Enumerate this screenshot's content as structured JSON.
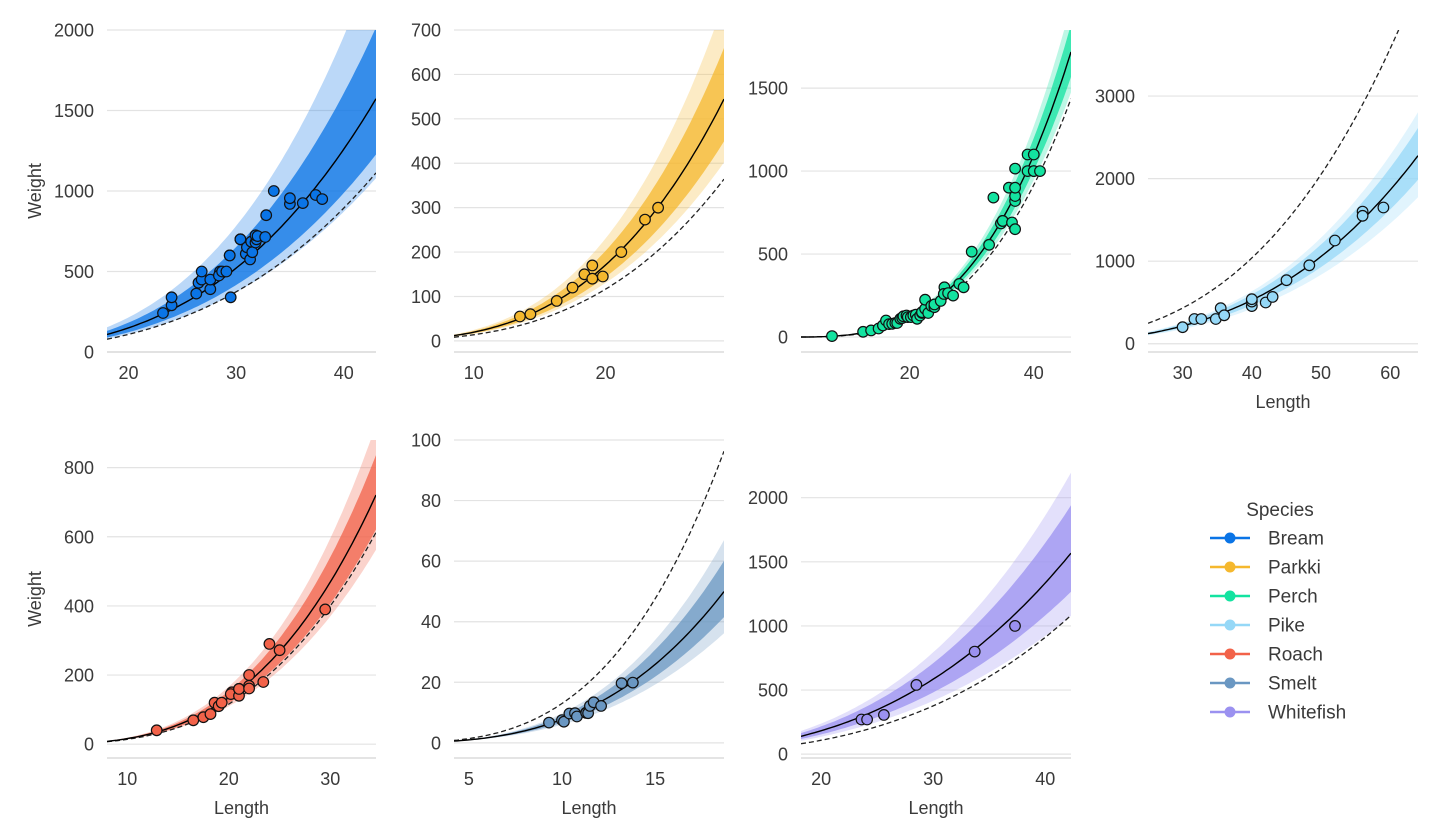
{
  "chart_data": [
    {
      "type": "scatter",
      "species": "Bream",
      "color": "#0a74e6",
      "xlabel": "",
      "ylabel": "Weight",
      "xlim": [
        18,
        43
      ],
      "ylim": [
        0,
        2000
      ],
      "xticks": [
        20,
        30,
        40
      ],
      "yticks": [
        0,
        500,
        1000,
        1500,
        2000
      ],
      "xtick_labels": [
        "20",
        "30",
        "40"
      ],
      "ytick_labels": [
        "0",
        "500",
        "1000",
        "1500",
        "2000"
      ],
      "fit_line": {
        "a": 0.0152,
        "b": 3.07
      },
      "reference_curve": {
        "a": 0.0125,
        "b": 3.03
      },
      "band": {
        "upper_a": 0.0152,
        "upper_b": 3.19,
        "lower_a": 0.0152,
        "lower_b": 2.97
      },
      "points": [
        [
          23.2,
          242
        ],
        [
          24.0,
          290
        ],
        [
          24.0,
          340
        ],
        [
          26.3,
          363
        ],
        [
          26.5,
          430
        ],
        [
          26.8,
          450
        ],
        [
          26.8,
          500
        ],
        [
          27.6,
          390
        ],
        [
          27.6,
          450
        ],
        [
          28.5,
          500
        ],
        [
          28.4,
          475
        ],
        [
          28.7,
          500
        ],
        [
          29.1,
          500
        ],
        [
          29.5,
          340
        ],
        [
          29.4,
          600
        ],
        [
          29.4,
          600
        ],
        [
          30.4,
          700
        ],
        [
          30.4,
          700
        ],
        [
          30.9,
          610
        ],
        [
          31.0,
          650
        ],
        [
          31.3,
          575
        ],
        [
          31.4,
          685
        ],
        [
          31.5,
          620
        ],
        [
          31.8,
          680
        ],
        [
          31.9,
          700
        ],
        [
          31.8,
          725
        ],
        [
          32.0,
          720
        ],
        [
          32.7,
          714
        ],
        [
          32.8,
          850
        ],
        [
          33.5,
          1000
        ],
        [
          35.0,
          920
        ],
        [
          35.0,
          955
        ],
        [
          36.2,
          925
        ],
        [
          37.4,
          975
        ],
        [
          38.0,
          950
        ]
      ]
    },
    {
      "type": "scatter",
      "species": "Parkki",
      "color": "#f5b82e",
      "xlabel": "",
      "ylabel": "",
      "xlim": [
        8.5,
        29
      ],
      "ylim": [
        -25,
        700
      ],
      "xticks": [
        10,
        20
      ],
      "yticks": [
        0,
        100,
        200,
        300,
        400,
        500,
        600,
        700
      ],
      "xtick_labels": [
        "10",
        "20"
      ],
      "ytick_labels": [
        "0",
        "100",
        "200",
        "300",
        "400",
        "500",
        "600",
        "700"
      ],
      "fit_line": {
        "a": 0.0149,
        "b": 3.12
      },
      "reference_curve": {
        "a": 0.0118,
        "b": 3.07
      },
      "band": {
        "upper_a": 0.0149,
        "upper_b": 3.22,
        "lower_a": 0.0149,
        "lower_b": 3.03
      },
      "points": [
        [
          13.5,
          55
        ],
        [
          14.3,
          60
        ],
        [
          16.3,
          90
        ],
        [
          17.5,
          120
        ],
        [
          18.4,
          150
        ],
        [
          19.0,
          140
        ],
        [
          19.0,
          170
        ],
        [
          19.8,
          145
        ],
        [
          21.2,
          200
        ],
        [
          23.0,
          273
        ],
        [
          24.0,
          300
        ]
      ]
    },
    {
      "type": "scatter",
      "species": "Perch",
      "color": "#13e3a0",
      "xlabel": "",
      "ylabel": "",
      "xlim": [
        2.5,
        46
      ],
      "ylim": [
        -90,
        1850
      ],
      "xticks": [
        20,
        40
      ],
      "yticks": [
        0,
        500,
        1000,
        1500
      ],
      "xtick_labels": [
        "20",
        "40"
      ],
      "ytick_labels": [
        "0",
        "500",
        "1000",
        "1500"
      ],
      "fit_line": {
        "a": 0.0079,
        "b": 3.21
      },
      "reference_curve": {
        "a": 0.0066,
        "b": 3.21
      },
      "band": {
        "upper_a": 0.0079,
        "upper_b": 3.25,
        "lower_a": 0.0079,
        "lower_b": 3.17
      },
      "points": [
        [
          7.5,
          5.9
        ],
        [
          12.5,
          32
        ],
        [
          13.8,
          40
        ],
        [
          15.0,
          51.5
        ],
        [
          15.7,
          70
        ],
        [
          16.2,
          100
        ],
        [
          16.7,
          78
        ],
        [
          17.2,
          80
        ],
        [
          17.7,
          85
        ],
        [
          18.0,
          85
        ],
        [
          18.5,
          110
        ],
        [
          18.8,
          115
        ],
        [
          19.0,
          125
        ],
        [
          19.5,
          130
        ],
        [
          19.7,
          120
        ],
        [
          20.2,
          120
        ],
        [
          20.6,
          130
        ],
        [
          21.0,
          135
        ],
        [
          21.2,
          110
        ],
        [
          21.7,
          130
        ],
        [
          22.0,
          150
        ],
        [
          22.0,
          145
        ],
        [
          22.0,
          150
        ],
        [
          22.5,
          170
        ],
        [
          22.5,
          225
        ],
        [
          23.0,
          145
        ],
        [
          23.5,
          188
        ],
        [
          24.0,
          180
        ],
        [
          24.0,
          197
        ],
        [
          25.0,
          218
        ],
        [
          25.6,
          300
        ],
        [
          25.5,
          260
        ],
        [
          26.2,
          265
        ],
        [
          27.0,
          250
        ],
        [
          28.0,
          320
        ],
        [
          28.7,
          300
        ],
        [
          30.0,
          514
        ],
        [
          32.8,
          556
        ],
        [
          33.5,
          840
        ],
        [
          34.7,
          685
        ],
        [
          35.0,
          700
        ],
        [
          35.0,
          700
        ],
        [
          36.5,
          690
        ],
        [
          36.0,
          900
        ],
        [
          37.0,
          650
        ],
        [
          37.0,
          820
        ],
        [
          37.0,
          850
        ],
        [
          37.0,
          900
        ],
        [
          37.0,
          1015
        ],
        [
          39.0,
          1100
        ],
        [
          39.0,
          1000
        ],
        [
          40.0,
          1100
        ],
        [
          40.0,
          1000
        ],
        [
          40.0,
          1000
        ],
        [
          41.0,
          1000
        ]
      ]
    },
    {
      "type": "scatter",
      "species": "Pike",
      "color": "#95d8f7",
      "xlabel": "Length",
      "ylabel": "",
      "xlim": [
        25,
        64
      ],
      "ylim": [
        -100,
        3800
      ],
      "xticks": [
        30,
        40,
        50,
        60
      ],
      "yticks": [
        0,
        1000,
        2000,
        3000
      ],
      "xtick_labels": [
        "30",
        "40",
        "50",
        "60"
      ],
      "ytick_labels": [
        "0",
        "1000",
        "2000",
        "3000"
      ],
      "fit_line": {
        "a": 0.0055,
        "b": 3.11
      },
      "reference_curve": {
        "a": 0.0135,
        "b": 3.05
      },
      "band": {
        "upper_a": 0.0055,
        "upper_b": 3.16,
        "lower_a": 0.0055,
        "lower_b": 3.05
      },
      "points": [
        [
          30.0,
          200
        ],
        [
          31.7,
          300
        ],
        [
          32.7,
          300
        ],
        [
          34.8,
          300
        ],
        [
          35.5,
          430
        ],
        [
          36.0,
          345
        ],
        [
          40.0,
          456
        ],
        [
          40.0,
          510
        ],
        [
          40.0,
          540
        ],
        [
          42.0,
          500
        ],
        [
          43.0,
          567
        ],
        [
          45.0,
          770
        ],
        [
          48.3,
          950
        ],
        [
          52.0,
          1250
        ],
        [
          56.0,
          1600
        ],
        [
          56.0,
          1550
        ],
        [
          59.0,
          1650
        ]
      ]
    },
    {
      "type": "scatter",
      "species": "Roach",
      "color": "#f26249",
      "xlabel": "Length",
      "ylabel": "Weight",
      "xlim": [
        8,
        34.5
      ],
      "ylim": [
        -40,
        880
      ],
      "xticks": [
        10,
        20,
        30
      ],
      "yticks": [
        0,
        200,
        400,
        600,
        800
      ],
      "xtick_labels": [
        "10",
        "20",
        "30"
      ],
      "ytick_labels": [
        "0",
        "200",
        "400",
        "600",
        "800"
      ],
      "fit_line": {
        "a": 0.0137,
        "b": 3.07
      },
      "reference_curve": {
        "a": 0.0125,
        "b": 3.05
      },
      "band": {
        "upper_a": 0.0137,
        "upper_b": 3.14,
        "lower_a": 0.0137,
        "lower_b": 3.0
      },
      "points": [
        [
          12.9,
          40
        ],
        [
          16.5,
          69
        ],
        [
          17.5,
          78
        ],
        [
          18.2,
          87
        ],
        [
          18.6,
          120
        ],
        [
          19.0,
          110
        ],
        [
          19.3,
          120
        ],
        [
          20.3,
          150
        ],
        [
          20.2,
          145
        ],
        [
          21.0,
          160
        ],
        [
          21.0,
          140
        ],
        [
          21.0,
          160
        ],
        [
          22.0,
          169
        ],
        [
          22.0,
          161
        ],
        [
          22.0,
          200
        ],
        [
          23.4,
          180
        ],
        [
          24.0,
          290
        ],
        [
          25.0,
          272
        ],
        [
          29.5,
          390
        ]
      ]
    },
    {
      "type": "scatter",
      "species": "Smelt",
      "color": "#6a97c2",
      "xlabel": "Length",
      "ylabel": "",
      "xlim": [
        4.2,
        18.7
      ],
      "ylim": [
        -5,
        100
      ],
      "xticks": [
        5,
        10,
        15
      ],
      "yticks": [
        0,
        20,
        40,
        60,
        80,
        100
      ],
      "xtick_labels": [
        "5",
        "10",
        "15"
      ],
      "ytick_labels": [
        "0",
        "20",
        "40",
        "60",
        "80",
        "100"
      ],
      "fit_line": {
        "a": 0.0081,
        "b": 2.98
      },
      "reference_curve": {
        "a": 0.0082,
        "b": 3.2
      },
      "band": {
        "upper_a": 0.0081,
        "upper_b": 3.08,
        "lower_a": 0.0081,
        "lower_b": 2.87
      },
      "points": [
        [
          9.3,
          6.7
        ],
        [
          10.0,
          7.5
        ],
        [
          10.1,
          7.0
        ],
        [
          10.4,
          9.7
        ],
        [
          10.7,
          9.8
        ],
        [
          10.8,
          8.7
        ],
        [
          11.3,
          10.0
        ],
        [
          11.3,
          9.9
        ],
        [
          11.4,
          9.8
        ],
        [
          11.5,
          12.2
        ],
        [
          11.7,
          13.4
        ],
        [
          12.1,
          12.2
        ],
        [
          13.2,
          19.7
        ],
        [
          13.8,
          19.9
        ]
      ]
    },
    {
      "type": "scatter",
      "species": "Whitefish",
      "color": "#9b91f0",
      "xlabel": "Length",
      "ylabel": "",
      "xlim": [
        18.2,
        42.3
      ],
      "ylim": [
        -30,
        2450
      ],
      "xticks": [
        20,
        30,
        40
      ],
      "yticks": [
        0,
        500,
        1000,
        1500,
        2000
      ],
      "xtick_labels": [
        "20",
        "30",
        "40"
      ],
      "ytick_labels": [
        "0",
        "500",
        "1000",
        "1500",
        "2000"
      ],
      "fit_line": {
        "a": 0.0337,
        "b": 2.87
      },
      "reference_curve": {
        "a": 0.011,
        "b": 3.07
      },
      "band": {
        "upper_a": 0.0337,
        "upper_b": 2.96,
        "lower_a": 0.0337,
        "lower_b": 2.77
      },
      "points": [
        [
          23.6,
          270
        ],
        [
          24.1,
          270
        ],
        [
          25.6,
          306
        ],
        [
          28.5,
          540
        ],
        [
          33.7,
          800
        ],
        [
          37.3,
          1000
        ]
      ]
    }
  ],
  "legend": {
    "title": "Species",
    "entries": [
      {
        "label": "Bream",
        "color": "#0a74e6"
      },
      {
        "label": "Parkki",
        "color": "#f5b82e"
      },
      {
        "label": "Perch",
        "color": "#13e3a0"
      },
      {
        "label": "Pike",
        "color": "#95d8f7"
      },
      {
        "label": "Roach",
        "color": "#f26249"
      },
      {
        "label": "Smelt",
        "color": "#6a97c2"
      },
      {
        "label": "Whitefish",
        "color": "#9b91f0"
      }
    ]
  }
}
